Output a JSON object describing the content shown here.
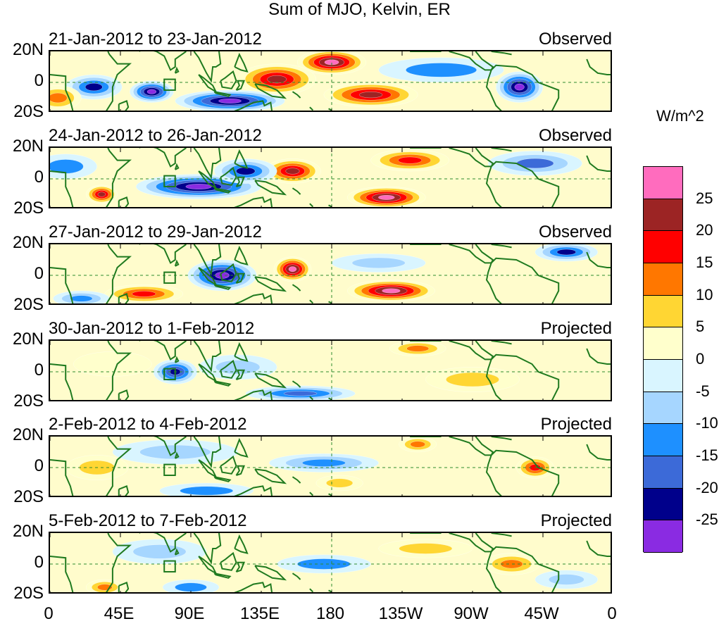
{
  "title": "Sum of MJO, Kelvin, ER",
  "units": "W/m^2",
  "panels": [
    {
      "date": "21-Jan-2012 to 23-Jan-2012",
      "label": "Observed"
    },
    {
      "date": "24-Jan-2012 to 26-Jan-2012",
      "label": "Observed"
    },
    {
      "date": "27-Jan-2012 to 29-Jan-2012",
      "label": "Observed"
    },
    {
      "date": "30-Jan-2012 to 1-Feb-2012",
      "label": "Projected"
    },
    {
      "date": "2-Feb-2012 to 4-Feb-2012",
      "label": "Projected"
    },
    {
      "date": "5-Feb-2012 to 7-Feb-2012",
      "label": "Projected"
    }
  ],
  "lat_labels": [
    "20N",
    "0",
    "20S"
  ],
  "lon_labels": [
    "0",
    "45E",
    "90E",
    "135E",
    "180",
    "135W",
    "90W",
    "45W",
    "0"
  ],
  "colorbar": {
    "colors": [
      "#ff6cbe",
      "#9c2424",
      "#ff0000",
      "#ff7700",
      "#ffd633",
      "#ffffcc",
      "#d9f5ff",
      "#a6d6ff",
      "#1e90ff",
      "#3c6ad8",
      "#00008b",
      "#8a2be2"
    ],
    "labels": [
      "25",
      "20",
      "15",
      "10",
      "5",
      "0",
      "-5",
      "-10",
      "-15",
      "-20",
      "-25"
    ]
  },
  "anomalies": [
    [
      {
        "lon": 180,
        "lat": 13,
        "v": 28,
        "w": 22,
        "h": 8
      },
      {
        "lon": 145,
        "lat": 2,
        "v": 22,
        "w": 25,
        "h": 10
      },
      {
        "lon": 205,
        "lat": -8,
        "v": 25,
        "w": 30,
        "h": 8
      },
      {
        "lon": 65,
        "lat": -6,
        "v": -28,
        "w": 14,
        "h": 7
      },
      {
        "lon": 115,
        "lat": -12,
        "v": -28,
        "w": 35,
        "h": 7
      },
      {
        "lon": 300,
        "lat": -3,
        "v": -28,
        "w": 15,
        "h": 10
      },
      {
        "lon": 28,
        "lat": -3,
        "v": -20,
        "w": 18,
        "h": 8
      },
      {
        "lon": 250,
        "lat": 8,
        "v": -10,
        "w": 40,
        "h": 8
      },
      {
        "lon": 5,
        "lat": -10,
        "v": 12,
        "w": 15,
        "h": 8
      }
    ],
    [
      {
        "lon": 155,
        "lat": 5,
        "v": 22,
        "w": 18,
        "h": 8
      },
      {
        "lon": 215,
        "lat": -12,
        "v": 27,
        "w": 25,
        "h": 7
      },
      {
        "lon": 230,
        "lat": 12,
        "v": 16,
        "w": 25,
        "h": 7
      },
      {
        "lon": 95,
        "lat": -5,
        "v": -28,
        "w": 40,
        "h": 8
      },
      {
        "lon": 33,
        "lat": -10,
        "v": 24,
        "w": 10,
        "h": 6
      },
      {
        "lon": 125,
        "lat": 5,
        "v": -20,
        "w": 20,
        "h": 8
      },
      {
        "lon": 310,
        "lat": 10,
        "v": -15,
        "w": 30,
        "h": 8
      },
      {
        "lon": 10,
        "lat": 8,
        "v": -10,
        "w": 20,
        "h": 8
      }
    ],
    [
      {
        "lon": 155,
        "lat": 4,
        "v": 27,
        "w": 12,
        "h": 8
      },
      {
        "lon": 218,
        "lat": -10,
        "v": 27,
        "w": 28,
        "h": 7
      },
      {
        "lon": 110,
        "lat": 0,
        "v": -28,
        "w": 22,
        "h": 10
      },
      {
        "lon": 60,
        "lat": -12,
        "v": 18,
        "w": 25,
        "h": 6
      },
      {
        "lon": 330,
        "lat": 15,
        "v": -20,
        "w": 20,
        "h": 6
      },
      {
        "lon": 210,
        "lat": 8,
        "v": -8,
        "w": 30,
        "h": 6
      },
      {
        "lon": 20,
        "lat": -15,
        "v": -12,
        "w": 18,
        "h": 5
      }
    ],
    [
      {
        "lon": 80,
        "lat": 0,
        "v": -22,
        "w": 14,
        "h": 8
      },
      {
        "lon": 235,
        "lat": 15,
        "v": 15,
        "w": 18,
        "h": 5
      },
      {
        "lon": 160,
        "lat": -14,
        "v": -18,
        "w": 35,
        "h": 5
      },
      {
        "lon": 120,
        "lat": 3,
        "v": -8,
        "w": 25,
        "h": 8
      },
      {
        "lon": 270,
        "lat": -5,
        "v": 6,
        "w": 30,
        "h": 8
      },
      {
        "lon": 40,
        "lat": 5,
        "v": 4,
        "w": 25,
        "h": 8
      }
    ],
    [
      {
        "lon": 310,
        "lat": 0,
        "v": 17,
        "w": 12,
        "h": 7
      },
      {
        "lon": 235,
        "lat": 15,
        "v": 13,
        "w": 12,
        "h": 5
      },
      {
        "lon": 185,
        "lat": -10,
        "v": 10,
        "w": 15,
        "h": 5
      },
      {
        "lon": 175,
        "lat": 3,
        "v": -13,
        "w": 35,
        "h": 6
      },
      {
        "lon": 80,
        "lat": 10,
        "v": -9,
        "w": 40,
        "h": 8
      },
      {
        "lon": 100,
        "lat": -15,
        "v": -10,
        "w": 30,
        "h": 5
      },
      {
        "lon": 30,
        "lat": 0,
        "v": 6,
        "w": 20,
        "h": 8
      }
    ],
    [
      {
        "lon": 295,
        "lat": 0,
        "v": 11,
        "w": 18,
        "h": 7
      },
      {
        "lon": 35,
        "lat": -15,
        "v": 14,
        "w": 12,
        "h": 5
      },
      {
        "lon": 240,
        "lat": 10,
        "v": 8,
        "w": 30,
        "h": 6
      },
      {
        "lon": 175,
        "lat": 0,
        "v": -10,
        "w": 30,
        "h": 6
      },
      {
        "lon": 70,
        "lat": 8,
        "v": -7,
        "w": 30,
        "h": 8
      },
      {
        "lon": 90,
        "lat": -15,
        "v": -10,
        "w": 18,
        "h": 5
      },
      {
        "lon": 330,
        "lat": -10,
        "v": -7,
        "w": 20,
        "h": 6
      }
    ]
  ]
}
